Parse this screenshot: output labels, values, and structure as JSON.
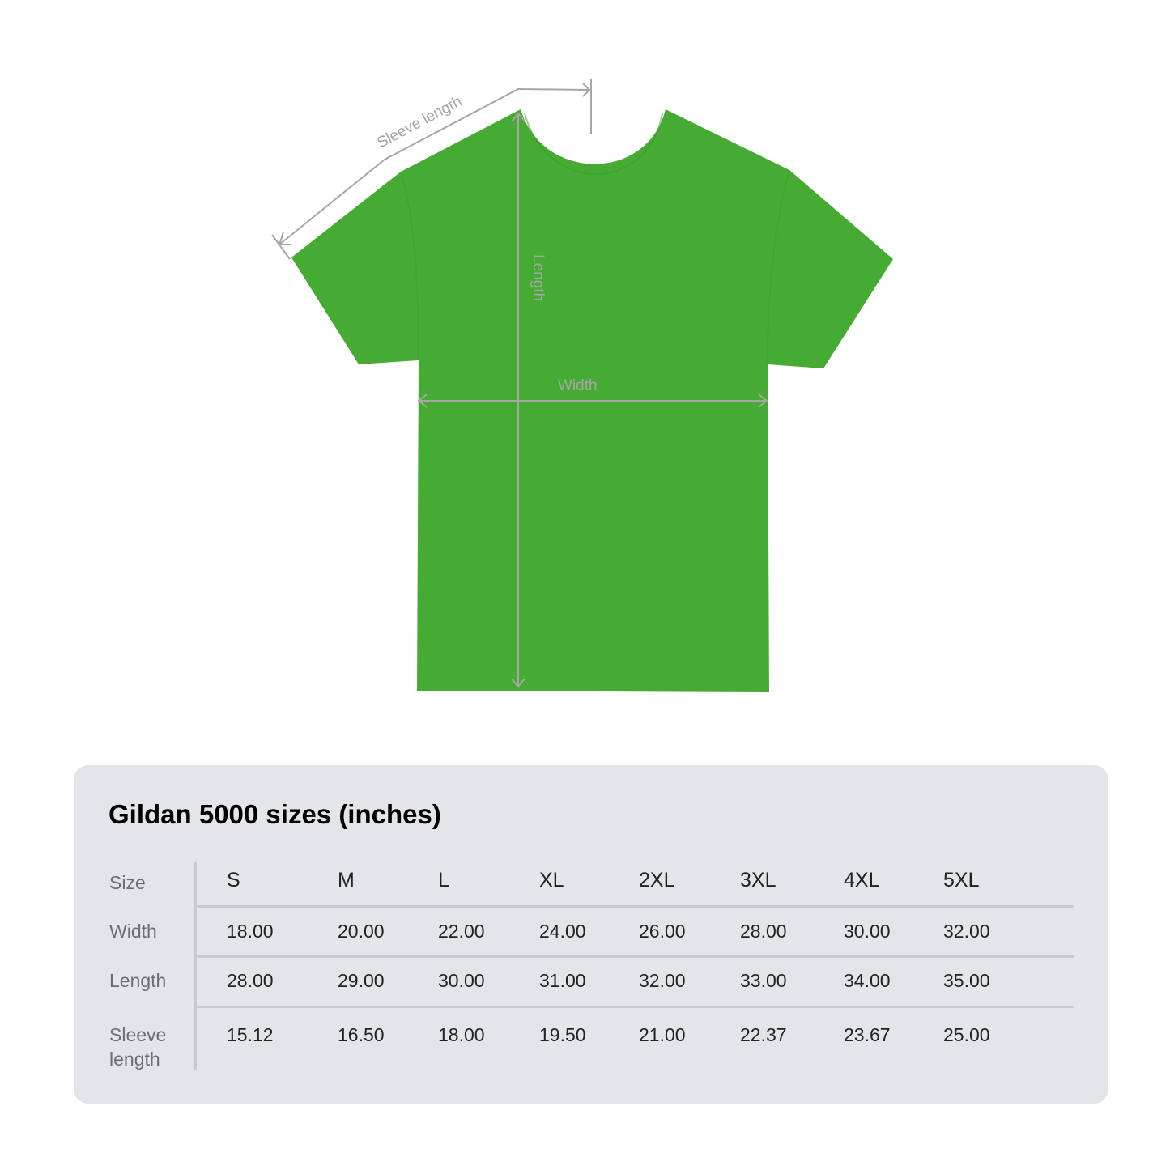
{
  "diagram": {
    "shirt_color": "#46ab33",
    "measure_color": "#a6a6a6",
    "labels": {
      "sleeve": "Sleeve length",
      "length": "Length",
      "width": "Width"
    }
  },
  "table": {
    "title": "Gildan 5000 sizes (inches)",
    "header_label": "Size",
    "sizes": [
      "S",
      "M",
      "L",
      "XL",
      "2XL",
      "3XL",
      "4XL",
      "5XL"
    ],
    "rows": [
      {
        "label": "Width",
        "values": [
          "18.00",
          "20.00",
          "22.00",
          "24.00",
          "26.00",
          "28.00",
          "30.00",
          "32.00"
        ]
      },
      {
        "label": "Length",
        "values": [
          "28.00",
          "29.00",
          "30.00",
          "31.00",
          "32.00",
          "33.00",
          "34.00",
          "35.00"
        ]
      },
      {
        "label": "Sleeve length",
        "values": [
          "15.12",
          "16.50",
          "18.00",
          "19.50",
          "21.00",
          "22.37",
          "23.67",
          "25.00"
        ]
      }
    ]
  }
}
